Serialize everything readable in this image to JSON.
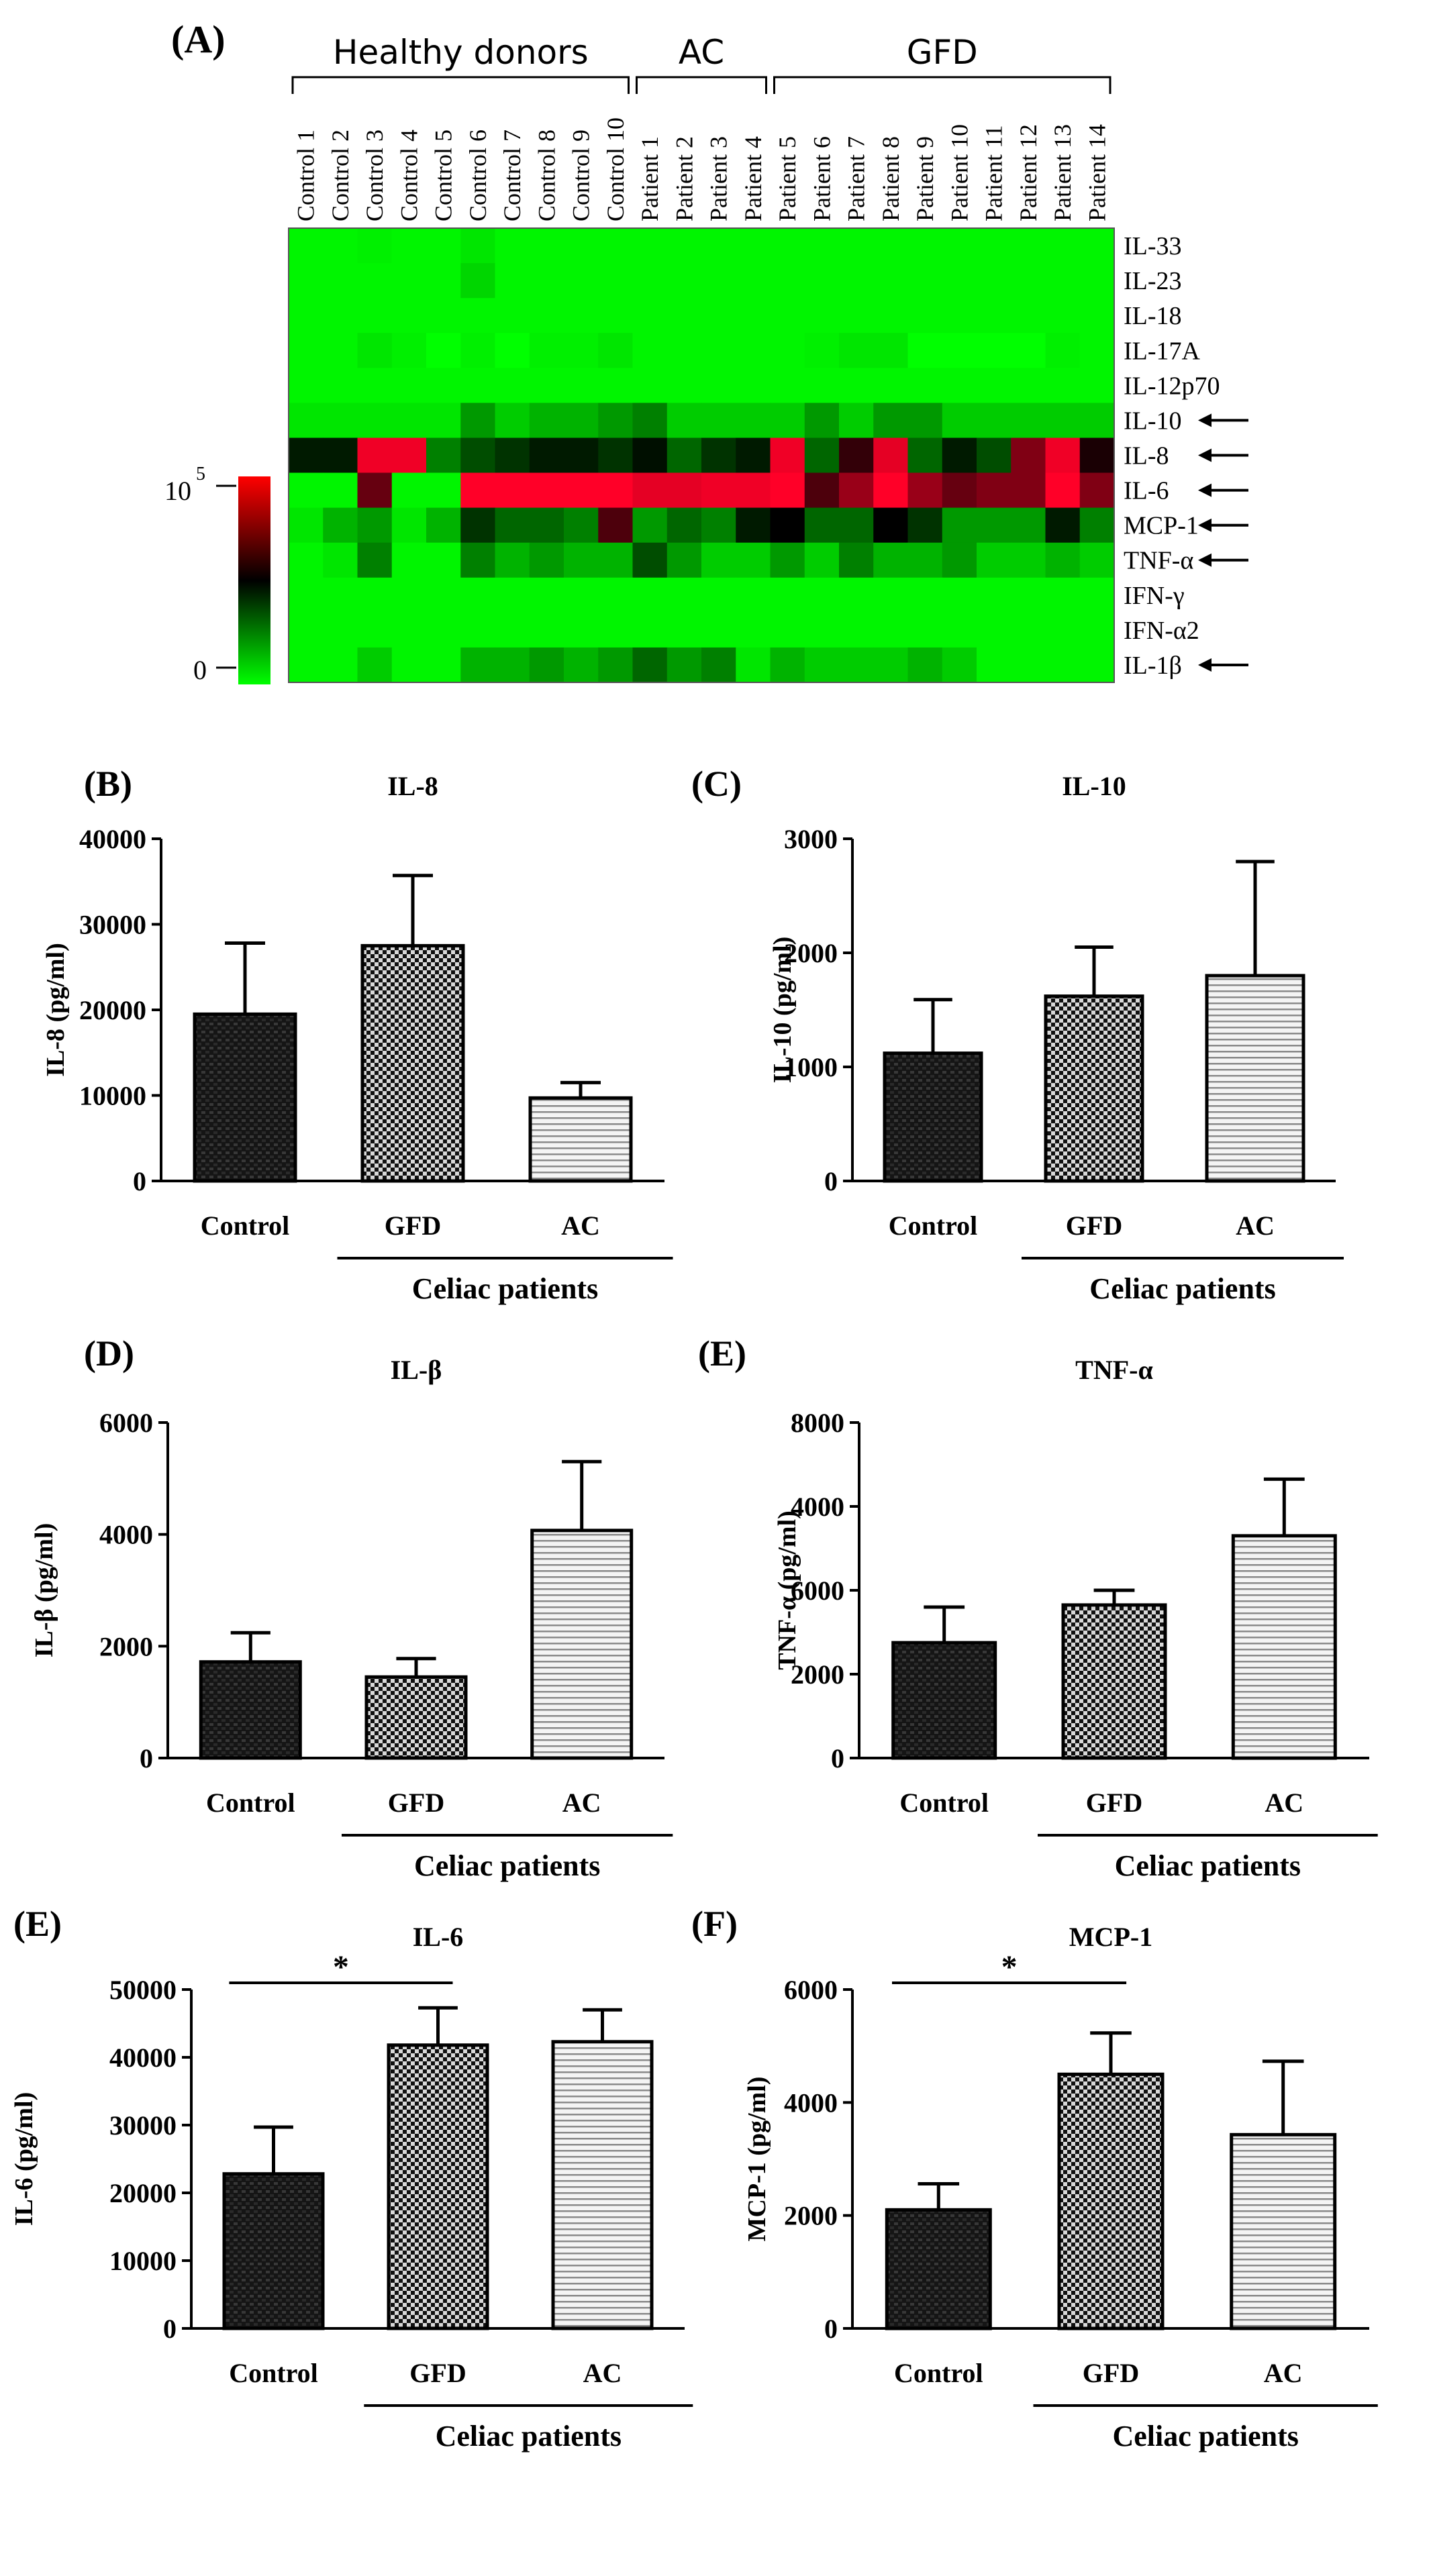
{
  "colors": {
    "low": "#00ff00",
    "mid": "#000000",
    "high": "#ff0000",
    "scaleTop": "#cc0000"
  },
  "chart_data": [
    {
      "type": "heatmap",
      "panel": "(A)",
      "groups": [
        {
          "label": "Healthy donors",
          "from": 0,
          "to": 9
        },
        {
          "label": "AC",
          "from": 10,
          "to": 13
        },
        {
          "label": "GFD",
          "from": 14,
          "to": 23
        }
      ],
      "columns": [
        "Control 1",
        "Control 2",
        "Control 3",
        "Control 4",
        "Control 5",
        "Control 6",
        "Control 7",
        "Control 8",
        "Control 9",
        "Control 10",
        "Patient 1",
        "Patient 2",
        "Patient 3",
        "Patient 4",
        "Patient 5",
        "Patient 6",
        "Patient 7",
        "Patient 8",
        "Patient 9",
        "Patient 10",
        "Patient 11",
        "Patient 12",
        "Patient 13",
        "Patient 14"
      ],
      "rows": [
        "IL-33",
        "IL-23",
        "IL-18",
        "IL-17A",
        "IL-12p70",
        "IL-10",
        "IL-8",
        "IL-6",
        "MCP-1",
        "TNF-α",
        "IFN-γ",
        "IFN-α2",
        "IL-1β"
      ],
      "arrow_rows": [
        5,
        6,
        7,
        8,
        9,
        12
      ],
      "scale": {
        "min_label": "0",
        "max_label": "10",
        "max_exp": "5"
      },
      "values": [
        [
          0.02,
          0.02,
          0.03,
          0.02,
          0.02,
          0.05,
          0.02,
          0.02,
          0.02,
          0.02,
          0.02,
          0.02,
          0.02,
          0.02,
          0.02,
          0.02,
          0.02,
          0.02,
          0.02,
          0.02,
          0.02,
          0.02,
          0.02,
          0.02
        ],
        [
          0.02,
          0.02,
          0.02,
          0.02,
          0.02,
          0.08,
          0.02,
          0.02,
          0.02,
          0.02,
          0.02,
          0.02,
          0.02,
          0.02,
          0.02,
          0.02,
          0.02,
          0.02,
          0.02,
          0.02,
          0.02,
          0.02,
          0.02,
          0.02
        ],
        [
          0.02,
          0.02,
          0.02,
          0.02,
          0.02,
          0.02,
          0.02,
          0.02,
          0.02,
          0.02,
          0.02,
          0.02,
          0.02,
          0.02,
          0.02,
          0.02,
          0.02,
          0.02,
          0.02,
          0.02,
          0.02,
          0.02,
          0.02,
          0.02
        ],
        [
          0.02,
          0.02,
          0.05,
          0.03,
          0.0,
          0.03,
          0.0,
          0.03,
          0.03,
          0.05,
          0.02,
          0.02,
          0.02,
          0.02,
          0.02,
          0.03,
          0.05,
          0.05,
          0.0,
          0.0,
          0.0,
          0.0,
          0.03,
          0.02
        ],
        [
          0.02,
          0.02,
          0.02,
          0.02,
          0.02,
          0.02,
          0.02,
          0.02,
          0.02,
          0.02,
          0.02,
          0.02,
          0.02,
          0.02,
          0.02,
          0.02,
          0.02,
          0.02,
          0.02,
          0.02,
          0.02,
          0.02,
          0.02,
          0.02
        ],
        [
          0.05,
          0.05,
          0.05,
          0.05,
          0.05,
          0.2,
          0.1,
          0.15,
          0.15,
          0.2,
          0.25,
          0.1,
          0.1,
          0.1,
          0.1,
          0.2,
          0.1,
          0.2,
          0.2,
          0.1,
          0.1,
          0.1,
          0.1,
          0.1
        ],
        [
          0.45,
          0.45,
          0.97,
          0.97,
          0.25,
          0.35,
          0.4,
          0.45,
          0.45,
          0.4,
          0.47,
          0.3,
          0.4,
          0.45,
          0.97,
          0.3,
          0.6,
          0.95,
          0.3,
          0.45,
          0.35,
          0.75,
          0.97,
          0.55
        ],
        [
          0.02,
          0.02,
          0.7,
          0.02,
          0.02,
          1.0,
          1.0,
          1.0,
          1.0,
          1.0,
          0.95,
          0.95,
          0.97,
          0.97,
          1.0,
          0.65,
          0.8,
          1.0,
          0.8,
          0.7,
          0.75,
          0.75,
          1.0,
          0.75
        ],
        [
          0.05,
          0.15,
          0.2,
          0.05,
          0.15,
          0.4,
          0.3,
          0.3,
          0.25,
          0.65,
          0.2,
          0.3,
          0.25,
          0.45,
          0.5,
          0.3,
          0.3,
          0.5,
          0.4,
          0.2,
          0.2,
          0.2,
          0.45,
          0.25
        ],
        [
          0.02,
          0.05,
          0.25,
          0.02,
          0.02,
          0.25,
          0.15,
          0.2,
          0.15,
          0.15,
          0.35,
          0.2,
          0.1,
          0.1,
          0.2,
          0.1,
          0.25,
          0.15,
          0.15,
          0.2,
          0.1,
          0.1,
          0.15,
          0.1
        ],
        [
          0.02,
          0.02,
          0.02,
          0.02,
          0.02,
          0.02,
          0.02,
          0.02,
          0.02,
          0.02,
          0.02,
          0.02,
          0.02,
          0.02,
          0.02,
          0.02,
          0.02,
          0.02,
          0.02,
          0.02,
          0.02,
          0.02,
          0.02,
          0.02
        ],
        [
          0.02,
          0.02,
          0.02,
          0.02,
          0.02,
          0.02,
          0.02,
          0.02,
          0.02,
          0.02,
          0.02,
          0.02,
          0.02,
          0.02,
          0.02,
          0.02,
          0.02,
          0.02,
          0.02,
          0.02,
          0.02,
          0.02,
          0.02,
          0.02
        ],
        [
          0.02,
          0.02,
          0.1,
          0.02,
          0.02,
          0.15,
          0.15,
          0.2,
          0.15,
          0.2,
          0.3,
          0.2,
          0.25,
          0.05,
          0.15,
          0.1,
          0.1,
          0.1,
          0.15,
          0.1,
          0.02,
          0.02,
          0.02,
          0.02
        ]
      ]
    },
    {
      "type": "bar",
      "panel": "(B)",
      "title": "IL-8",
      "ylabel": "IL-8 (pg/ml)",
      "categories": [
        "Control",
        "GFD",
        "AC"
      ],
      "values": [
        19500,
        27500,
        9700
      ],
      "errors": [
        8300,
        8200,
        1800
      ],
      "ylim": [
        0,
        40000
      ],
      "ticks": [
        "0",
        "10000",
        "20000",
        "30000",
        "40000"
      ],
      "group_label": "Celiac patients"
    },
    {
      "type": "bar",
      "panel": "(C)",
      "title": "IL-10",
      "ylabel": "IL-10 (pg/ml)",
      "categories": [
        "Control",
        "GFD",
        "AC"
      ],
      "values": [
        1120,
        1620,
        1800
      ],
      "errors": [
        470,
        430,
        1000
      ],
      "ylim": [
        0,
        3000
      ],
      "ticks": [
        "0",
        "1000",
        "2000",
        "3000"
      ],
      "group_label": "Celiac patients"
    },
    {
      "type": "bar",
      "panel": "(D)",
      "title": "IL-β",
      "ylabel": "IL-β (pg/ml)",
      "categories": [
        "Control",
        "GFD",
        "AC"
      ],
      "values": [
        1720,
        1450,
        4070
      ],
      "errors": [
        520,
        330,
        1230
      ],
      "ylim": [
        0,
        6000
      ],
      "ticks": [
        "0",
        "2000",
        "4000",
        "6000"
      ],
      "group_label": "Celiac patients"
    },
    {
      "type": "bar",
      "panel": "(E)",
      "title": "TNF-α",
      "ylabel": "TNF-α (pg/ml)",
      "categories": [
        "Control",
        "GFD",
        "AC"
      ],
      "values": [
        2750,
        3650,
        5300
      ],
      "errors": [
        850,
        350,
        1350
      ],
      "ylim": [
        0,
        8000
      ],
      "ticks": [
        "0",
        "2000",
        "6000",
        "4000",
        "8000"
      ],
      "group_label": "Celiac patients"
    },
    {
      "type": "bar",
      "panel": "(E)",
      "title": "IL-6",
      "ylabel": "IL-6 (pg/ml)",
      "categories": [
        "Control",
        "GFD",
        "AC"
      ],
      "values": [
        22800,
        41800,
        42300
      ],
      "errors": [
        6900,
        5500,
        4700
      ],
      "ylim": [
        0,
        50000
      ],
      "ticks": [
        "0",
        "10000",
        "20000",
        "30000",
        "40000",
        "50000"
      ],
      "group_label": "Celiac patients",
      "significance": {
        "from": 0,
        "to": 1,
        "label": "*"
      }
    },
    {
      "type": "bar",
      "panel": "(F)",
      "title": "MCP-1",
      "ylabel": "MCP-1 (pg/ml)",
      "categories": [
        "Control",
        "GFD",
        "AC"
      ],
      "values": [
        2100,
        4500,
        3430
      ],
      "errors": [
        460,
        730,
        1300
      ],
      "ylim": [
        0,
        6000
      ],
      "ticks": [
        "0",
        "2000",
        "4000",
        "6000"
      ],
      "group_label": "Celiac patients",
      "significance": {
        "from": 0,
        "to": 1,
        "label": "*"
      }
    }
  ]
}
